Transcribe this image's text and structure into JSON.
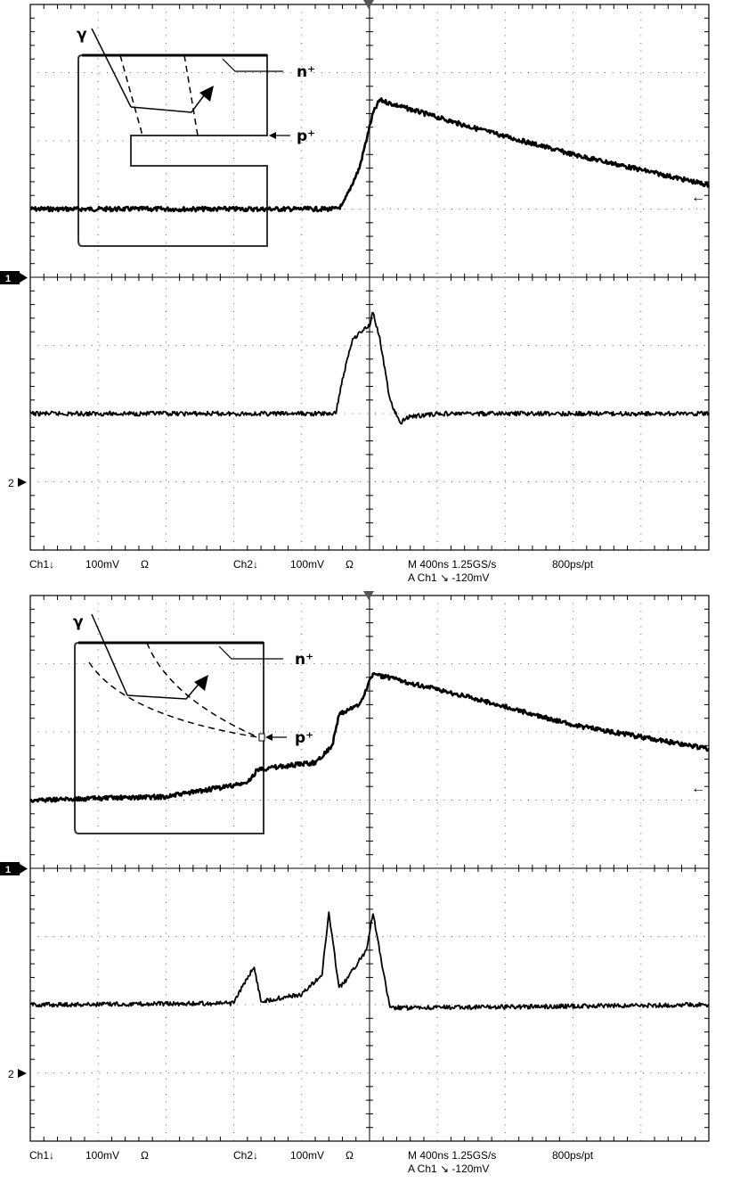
{
  "panels": [
    {
      "ch1_label": "Ch1↓",
      "ch1_scale": "100mV",
      "ch1_coupling": "Ω",
      "ch2_label": "Ch2↓",
      "ch2_scale": "100mV",
      "ch2_coupling": "Ω",
      "timebase": "M 400ns 1.25GS/s",
      "resolution": "800ps/pt",
      "trigger": "A  Ch1  ↘  -120mV",
      "marker1": "1",
      "marker2": "2",
      "right_arrow": "←",
      "inset": {
        "gamma": "γ",
        "n_label": "n⁺",
        "p_label": "p⁺",
        "variant": "strip"
      }
    },
    {
      "ch1_label": "Ch1↓",
      "ch1_scale": "100mV",
      "ch1_coupling": "Ω",
      "ch2_label": "Ch2↓",
      "ch2_scale": "100mV",
      "ch2_coupling": "Ω",
      "timebase": "M 400ns 1.25GS/s",
      "resolution": "800ps/pt",
      "trigger": "A  Ch1  ↘  -120mV",
      "marker1": "1",
      "marker2": "2",
      "right_arrow": "←",
      "inset": {
        "gamma": "γ",
        "n_label": "n⁺",
        "p_label": "p⁺",
        "variant": "point"
      }
    }
  ],
  "chart_data": [
    {
      "type": "line",
      "xlabel": "",
      "ylabel": "",
      "x_divisions": 10,
      "y_divisions": 8,
      "xlim": [
        0,
        10
      ],
      "ylim": [
        -4,
        4
      ],
      "grid": true,
      "series": [
        {
          "x": [
            0,
            4.5,
            4.6,
            4.85,
            5.05,
            5.15,
            5.3,
            6.5,
            8.0,
            10.0
          ],
          "y": [
            1.0,
            1.0,
            1.05,
            1.6,
            2.4,
            2.6,
            2.55,
            2.2,
            1.8,
            1.35
          ]
        },
        {
          "x": [
            0,
            4.5,
            4.6,
            4.75,
            5.0,
            5.05,
            5.15,
            5.3,
            5.45,
            5.55,
            6.0,
            10.0
          ],
          "y": [
            -2.0,
            -2.0,
            -1.5,
            -0.9,
            -0.7,
            -0.5,
            -0.9,
            -1.8,
            -2.15,
            -2.05,
            -2.0,
            -2.0
          ]
        }
      ]
    },
    {
      "type": "line",
      "xlabel": "",
      "ylabel": "",
      "x_divisions": 10,
      "y_divisions": 8,
      "xlim": [
        0,
        10
      ],
      "ylim": [
        -4,
        4
      ],
      "grid": true,
      "series": [
        {
          "x": [
            0,
            2.0,
            3.2,
            3.35,
            4.2,
            4.45,
            4.55,
            4.85,
            5.05,
            6.5,
            8.0,
            10.0
          ],
          "y": [
            1.0,
            1.05,
            1.25,
            1.45,
            1.55,
            1.8,
            2.25,
            2.4,
            2.85,
            2.5,
            2.1,
            1.75
          ]
        },
        {
          "x": [
            0,
            3.0,
            3.2,
            3.3,
            3.4,
            4.0,
            4.3,
            4.4,
            4.55,
            4.65,
            4.95,
            5.05,
            5.2,
            5.3,
            10.0
          ],
          "y": [
            -2.0,
            -1.98,
            -1.6,
            -1.45,
            -1.95,
            -1.85,
            -1.55,
            -0.65,
            -1.75,
            -1.65,
            -1.2,
            -0.65,
            -1.5,
            -2.05,
            -2.0
          ]
        }
      ]
    }
  ]
}
